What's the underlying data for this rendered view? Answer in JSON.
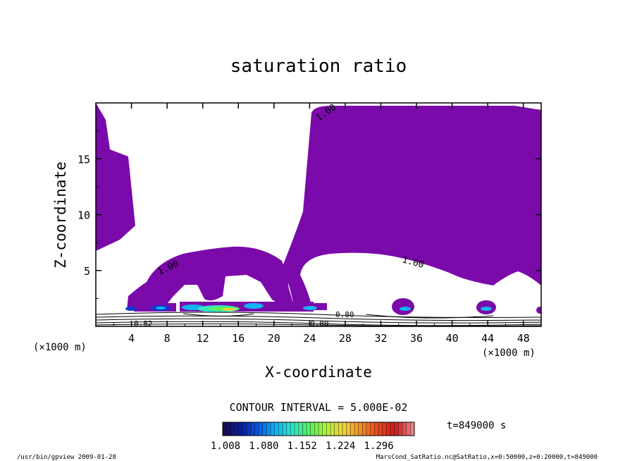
{
  "chart_data": {
    "type": "contour",
    "title": "saturation ratio",
    "xlabel": "X-coordinate",
    "ylabel": "Z-coordinate",
    "x_unit": "(×1000 m)",
    "y_unit": "(×1000 m)",
    "xlim": [
      0,
      50
    ],
    "ylim": [
      0,
      20
    ],
    "x_ticks": [
      4,
      8,
      12,
      16,
      20,
      24,
      28,
      32,
      36,
      40,
      44,
      48
    ],
    "y_ticks": [
      5,
      10,
      15
    ],
    "contour_labels": [
      "1.00",
      "1.00",
      "1.00",
      "0.80",
      "0.80",
      "0.82"
    ],
    "contour_interval": "CONTOUR INTERVAL = 5.000E-02",
    "colorbar": {
      "ticks": [
        "1.008",
        "1.080",
        "1.152",
        "1.224",
        "1.296"
      ],
      "colors": [
        "#1a0a5a",
        "#0a1ea0",
        "#0a5ae6",
        "#14b4f0",
        "#32e6c8",
        "#5af05a",
        "#b4f03c",
        "#f0d23c",
        "#f08c28",
        "#e6461e",
        "#c81e1e",
        "#f08282"
      ]
    },
    "time_label": "t=849000 s",
    "fill_color": "#7a0aaa"
  },
  "footer": {
    "left": "/usr/bin/gpview  2009-01-28",
    "right": "MarsCond_SatRatio.nc@SatRatio,x=0:50000,z=0:20000,t=849000"
  }
}
